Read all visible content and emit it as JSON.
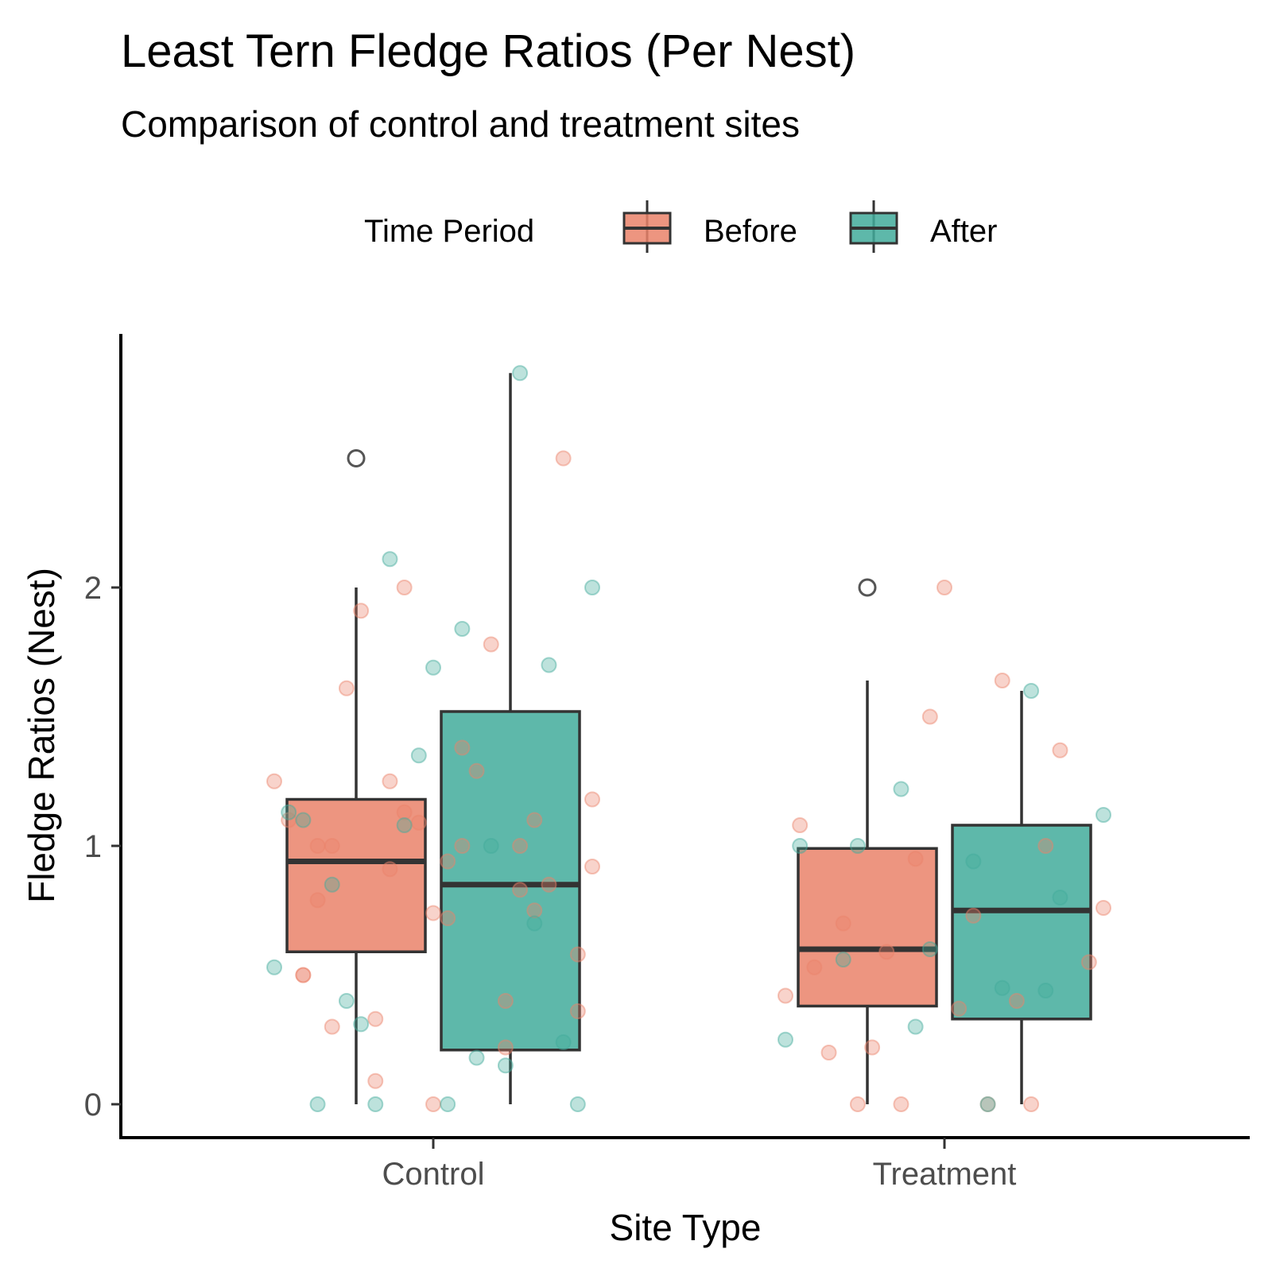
{
  "chart_data": {
    "type": "box",
    "title": "Least Tern Fledge Ratios (Per Nest)",
    "subtitle": "Comparison of control and treatment sites",
    "xlabel": "Site Type",
    "ylabel": "Fledge Ratios (Nest)",
    "categories": [
      "Control",
      "Treatment"
    ],
    "ylim": [
      -0.15,
      2.95
    ],
    "yticks": [
      0,
      1,
      2
    ],
    "grid": false,
    "legend": {
      "title": "Time Period",
      "position": "top",
      "entries": [
        {
          "label": "Before",
          "color": "#ea826a"
        },
        {
          "label": "After",
          "color": "#42ab9b"
        }
      ]
    },
    "series": [
      {
        "name": "Before",
        "color": "#ea826a",
        "boxes": [
          {
            "category": "Control",
            "q1": 0.59,
            "median": 0.94,
            "q3": 1.18,
            "whisker_low": 0.0,
            "whisker_high": 2.0,
            "outliers": [
              2.5
            ]
          },
          {
            "category": "Treatment",
            "q1": 0.38,
            "median": 0.6,
            "q3": 0.99,
            "whisker_low": 0.0,
            "whisker_high": 1.64,
            "outliers": [
              2.0
            ]
          }
        ],
        "points": [
          {
            "category": "Control",
            "values": [
              0.0,
              0.5,
              0.4,
              0.33,
              0.58,
              0.72,
              0.79,
              0.83,
              0.91,
              0.92,
              1.0,
              1.0,
              1.1,
              1.13,
              1.25,
              1.29,
              1.61,
              0.85,
              1.09,
              1.1,
              1.78,
              1.91,
              2.5,
              0.74,
              0.5,
              0.22,
              0.09,
              0.36,
              0.94,
              1.0,
              1.0,
              1.25,
              1.18,
              1.38,
              0.3,
              0.75,
              2.0
            ]
          },
          {
            "category": "Treatment",
            "values": [
              2.0,
              0.53,
              0.4,
              0.59,
              0.55,
              0.37,
              0.2,
              0.0,
              0.0,
              0.76,
              0.73,
              0.7,
              1.0,
              0.95,
              0.42,
              0.0,
              0.0,
              1.37,
              1.5,
              1.08,
              1.64,
              0.22
            ]
          }
        ]
      },
      {
        "name": "After",
        "color": "#42ab9b",
        "boxes": [
          {
            "category": "Control",
            "q1": 0.21,
            "median": 0.85,
            "q3": 1.52,
            "whisker_low": 0.0,
            "whisker_high": 2.83,
            "outliers": []
          },
          {
            "category": "Treatment",
            "q1": 0.33,
            "median": 0.75,
            "q3": 1.08,
            "whisker_low": 0.0,
            "whisker_high": 1.6,
            "outliers": []
          }
        ],
        "points": [
          {
            "category": "Control",
            "values": [
              2.83,
              2.11,
              2.0,
              1.84,
              0.85,
              0.7,
              1.08,
              0.53,
              0.18,
              0.4,
              1.7,
              1.35,
              1.13,
              1.0,
              0.31,
              0.24,
              1.69,
              1.1,
              0.15,
              0.0,
              0.0,
              0.0,
              0.0
            ]
          },
          {
            "category": "Treatment",
            "values": [
              1.6,
              1.22,
              1.12,
              0.94,
              0.56,
              0.44,
              0.3,
              0.25,
              0.0,
              1.0,
              0.8,
              0.6,
              1.0,
              0.45
            ]
          }
        ]
      }
    ]
  }
}
